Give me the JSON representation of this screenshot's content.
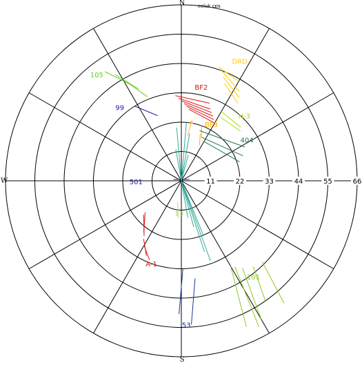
{
  "chart_data": {
    "type": "scatter",
    "subtype": "polar-vector",
    "title": "",
    "annotation": "celuk cps",
    "rlim": [
      0,
      66
    ],
    "ring_values": [
      11,
      22,
      33,
      44,
      55,
      66
    ],
    "ring_labels": [
      "11",
      "22",
      "33",
      "44",
      "55",
      "66"
    ],
    "spoke_every_deg": 30,
    "grid": true,
    "directions": {
      "north": "N",
      "south": "S",
      "west": "W"
    },
    "groups": [
      {
        "label": "105",
        "color": "#66cc22",
        "label_polar": [
          -38.5,
          51
        ],
        "segments": [
          [
            [
              -35,
              50
            ],
            [
              -27,
              40
            ]
          ],
          [
            [
              -32,
              47
            ],
            [
              -25,
              38
            ]
          ],
          [
            [
              -30,
              44
            ],
            [
              -22,
              34
            ]
          ]
        ]
      },
      {
        "label": "99",
        "color": "#1a1aaa",
        "label_polar": [
          -40,
          36
        ],
        "segments": [
          [
            [
              -32,
              33
            ],
            [
              -20,
              26
            ]
          ]
        ]
      },
      {
        "label": "DRD",
        "color": "#ffcc00",
        "label_polar": [
          26,
          50
        ],
        "segments": [
          [
            [
              18,
              45
            ],
            [
              30,
              43
            ]
          ],
          [
            [
              20,
              44
            ],
            [
              33,
              40
            ]
          ],
          [
            [
              22,
              42
            ],
            [
              35,
              38
            ]
          ],
          [
            [
              24,
              40
            ],
            [
              36,
              36
            ]
          ]
        ]
      },
      {
        "label": "BF2",
        "color": "#dd1111",
        "label_polar": [
          12,
          36
        ],
        "segments": [
          [
            [
              -4,
              32
            ],
            [
              20,
              31
            ]
          ],
          [
            [
              -2,
              31
            ],
            [
              22,
              29
            ]
          ],
          [
            [
              0,
              30
            ],
            [
              24,
              28
            ]
          ],
          [
            [
              2,
              29
            ],
            [
              26,
              27
            ]
          ],
          [
            [
              4,
              28
            ],
            [
              28,
              26
            ]
          ],
          [
            [
              6,
              27
            ],
            [
              30,
              25
            ]
          ]
        ]
      },
      {
        "label": "H-3",
        "color": "#aadd00",
        "label_polar": [
          44,
          34
        ],
        "segments": [
          [
            [
              30,
              30
            ],
            [
              48,
              30
            ]
          ],
          [
            [
              32,
              28
            ],
            [
              50,
              29
            ]
          ]
        ]
      },
      {
        "label": "BF3",
        "color": "#ffaa00",
        "label_polar": [
          28,
          24
        ],
        "segments": [
          [
            [
              20,
              22
            ],
            [
              25,
              18
            ]
          ],
          [
            [
              22,
              19
            ],
            [
              27,
              15
            ]
          ]
        ]
      },
      {
        "label": "F",
        "color": "#ffbb33",
        "label_polar": [
          10,
          22
        ],
        "segments": [
          [
            [
              10,
              23
            ],
            [
              8,
              17
            ]
          ]
        ]
      },
      {
        "label": "404",
        "color": "#1a7755",
        "label_polar": [
          58,
          29
        ],
        "segments": [
          [
            [
              20,
              20
            ],
            [
              62,
              27
            ]
          ],
          [
            [
              25,
              18
            ],
            [
              68,
              25
            ]
          ],
          [
            [
              30,
              17
            ],
            [
              72,
              23
            ]
          ]
        ]
      },
      {
        "label": "501",
        "color": "#1a1aaa",
        "label_polar": [
          -91,
          17
        ],
        "segments": [
          [
            [
              -80,
              3
            ],
            [
              80,
              3
            ]
          ]
        ]
      },
      {
        "label": "101",
        "color": "#88cc22",
        "label_polar": [
          143,
          45
        ],
        "segments": [
          [
            [
              145,
              40
            ],
            [
              150,
              60
            ]
          ],
          [
            [
              140,
              42
            ],
            [
              145,
              55
            ]
          ],
          [
            [
              135,
              43
            ],
            [
              140,
              60
            ]
          ],
          [
            [
              148,
              38
            ],
            [
              152,
              62
            ]
          ],
          [
            [
              150,
              37
            ],
            [
              156,
              60
            ]
          ]
        ]
      },
      {
        "label": "53",
        "color": "#1a3399",
        "label_polar": [
          178,
          54
        ],
        "segments": [
          [
            [
              179,
              33
            ],
            [
              181,
              50
            ]
          ],
          [
            [
              172,
              37
            ],
            [
              176,
              54
            ]
          ]
        ]
      },
      {
        "label": "A-1",
        "color": "#dd1111",
        "label_polar": [
          -160,
          33
        ],
        "segments": [
          [
            [
              -146,
              25
            ],
            [
              -132,
              19
            ]
          ],
          [
            [
              -144,
              24
            ],
            [
              -131,
              18
            ]
          ],
          [
            [
              -155,
              31
            ],
            [
              -147,
              26
            ]
          ],
          [
            [
              -158,
              32
            ],
            [
              -150,
              28
            ]
          ]
        ]
      },
      {
        "label": "13",
        "color": "#aadd77",
        "label_polar": [
          -176,
          12
        ],
        "segments": [
          [
            [
              -170,
              8
            ],
            [
              -175,
              14
            ]
          ]
        ]
      },
      {
        "label": "",
        "color": "#33aa99",
        "label_polar": null,
        "segments": [
          [
            [
              0,
              0
            ],
            [
              160,
              32
            ]
          ],
          [
            [
              0,
              0
            ],
            [
              162,
              28
            ]
          ],
          [
            [
              0,
              0
            ],
            [
              158,
              22
            ]
          ],
          [
            [
              0,
              0
            ],
            [
              165,
              18
            ]
          ],
          [
            [
              0,
              0
            ],
            [
              -5,
              20
            ]
          ],
          [
            [
              0,
              0
            ],
            [
              5,
              22
            ]
          ],
          [
            [
              0,
              0
            ],
            [
              10,
              18
            ]
          ],
          [
            [
              0,
              0
            ],
            [
              -10,
              12
            ]
          ],
          [
            [
              0,
              0
            ],
            [
              15,
              10
            ]
          ],
          [
            [
              0,
              0
            ],
            [
              170,
              14
            ]
          ]
        ]
      }
    ]
  }
}
